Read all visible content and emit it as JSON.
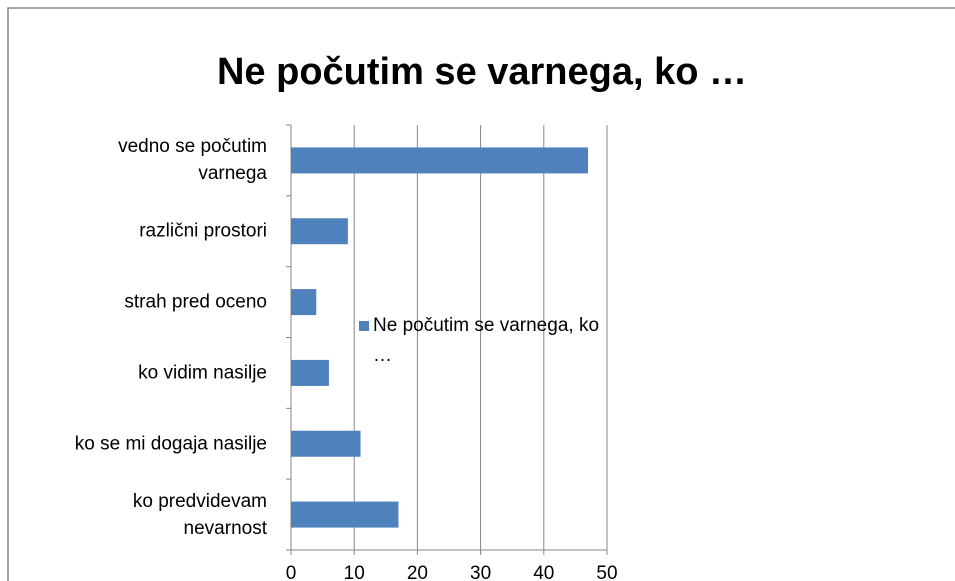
{
  "chart_data": {
    "type": "bar",
    "orientation": "horizontal",
    "title": "Ne počutim se varnega, ko …",
    "categories": [
      "vedno se počutim varnega",
      "različni prostori",
      "strah pred oceno",
      "ko vidim nasilje",
      "ko se mi dogaja nasilje",
      "ko predvidevam nevarnost"
    ],
    "series": [
      {
        "name": "Ne počutim se varnega, ko …",
        "color": "#4f81bd",
        "values": [
          47,
          9,
          4,
          6,
          11,
          17
        ]
      }
    ],
    "xlim": [
      0,
      50
    ],
    "xticks": [
      0,
      10,
      20,
      30,
      40,
      50
    ],
    "grid": true,
    "legend": "right"
  }
}
